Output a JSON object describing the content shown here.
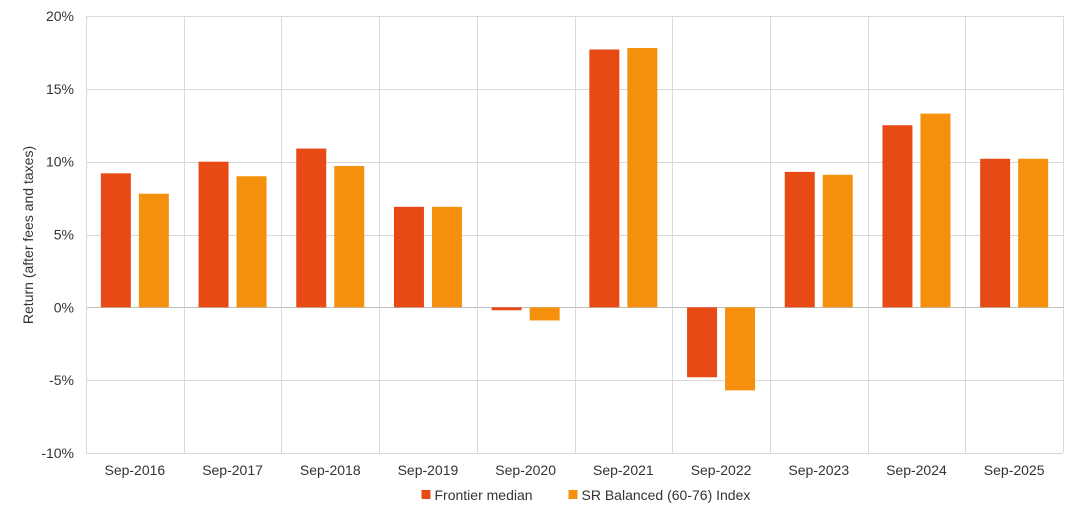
{
  "chart_data": {
    "type": "bar",
    "title": "",
    "xlabel": "",
    "ylabel": "Return (after fees and taxes)",
    "ylim": [
      -10,
      20
    ],
    "yticks": [
      20,
      15,
      10,
      5,
      0,
      -5,
      -10
    ],
    "ytick_labels": [
      "20%",
      "15%",
      "10%",
      "5%",
      "0%",
      "-5%",
      "-10%"
    ],
    "grid": true,
    "legend_position": "bottom",
    "categories": [
      "Sep-2016",
      "Sep-2017",
      "Sep-2018",
      "Sep-2019",
      "Sep-2020",
      "Sep-2021",
      "Sep-2022",
      "Sep-2023",
      "Sep-2024",
      "Sep-2025"
    ],
    "series": [
      {
        "name": "Frontier median",
        "color": "#E84A16",
        "values": [
          9.2,
          10.0,
          10.9,
          6.9,
          -0.2,
          17.7,
          -4.8,
          9.3,
          12.5,
          10.2
        ]
      },
      {
        "name": "SR Balanced (60-76) Index",
        "color": "#F5900C",
        "values": [
          7.8,
          9.0,
          9.7,
          6.9,
          -0.9,
          17.8,
          -5.7,
          9.1,
          13.3,
          10.2
        ]
      }
    ]
  }
}
